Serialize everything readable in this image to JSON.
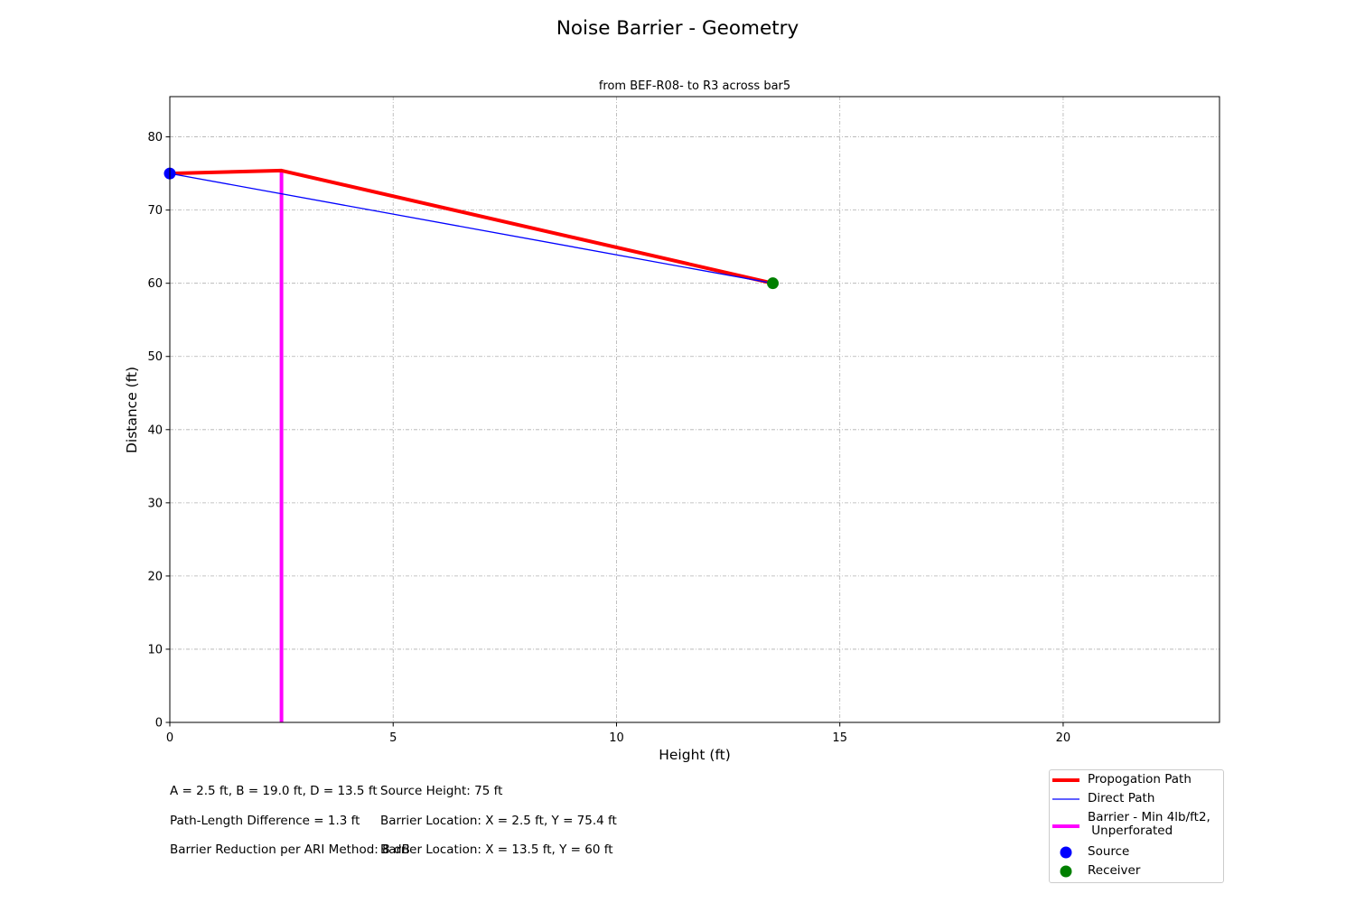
{
  "figure": {
    "suptitle": "Noise Barrier - Geometry"
  },
  "annotations": {
    "left": [
      "A = 2.5 ft, B = 19.0 ft, D = 13.5 ft",
      "Path-Length Difference = 1.3 ft",
      "Barrier Reduction per ARI Method: 8 dB"
    ],
    "right": [
      "Source Height: 75 ft",
      "Barrier Location: X = 2.5 ft, Y = 75.4 ft",
      "Barrier Location: X = 13.5 ft, Y = 60 ft"
    ]
  },
  "chart_data": {
    "type": "line",
    "title": "from BEF-R08- to R3 across bar5",
    "xlabel": "Height (ft)",
    "ylabel": "Distance (ft)",
    "xlim": [
      0,
      23.5
    ],
    "ylim": [
      0,
      85.5
    ],
    "xticks": [
      0,
      5,
      10,
      15,
      20
    ],
    "yticks": [
      0,
      10,
      20,
      30,
      40,
      50,
      60,
      70,
      80
    ],
    "grid": true,
    "legend_position": "lower-right",
    "series": [
      {
        "name": "Propogation Path",
        "kind": "line",
        "color": "#ff0000",
        "width": 4,
        "x": [
          0,
          2.5,
          13.5
        ],
        "y": [
          75,
          75.4,
          60
        ]
      },
      {
        "name": "Direct Path",
        "kind": "line",
        "color": "#0000ff",
        "width": 1.3,
        "x": [
          0,
          13.5
        ],
        "y": [
          75,
          60
        ]
      },
      {
        "name": "Barrier - Min 4lb/ft2,\n Unperforated",
        "kind": "line",
        "color": "#ff00ff",
        "width": 4,
        "x": [
          2.5,
          2.5
        ],
        "y": [
          0,
          75.4
        ]
      },
      {
        "name": "Source",
        "kind": "point",
        "color": "#0000ff",
        "x": [
          0
        ],
        "y": [
          75
        ]
      },
      {
        "name": "Receiver",
        "kind": "point",
        "color": "#008000",
        "x": [
          13.5
        ],
        "y": [
          60
        ]
      }
    ]
  }
}
